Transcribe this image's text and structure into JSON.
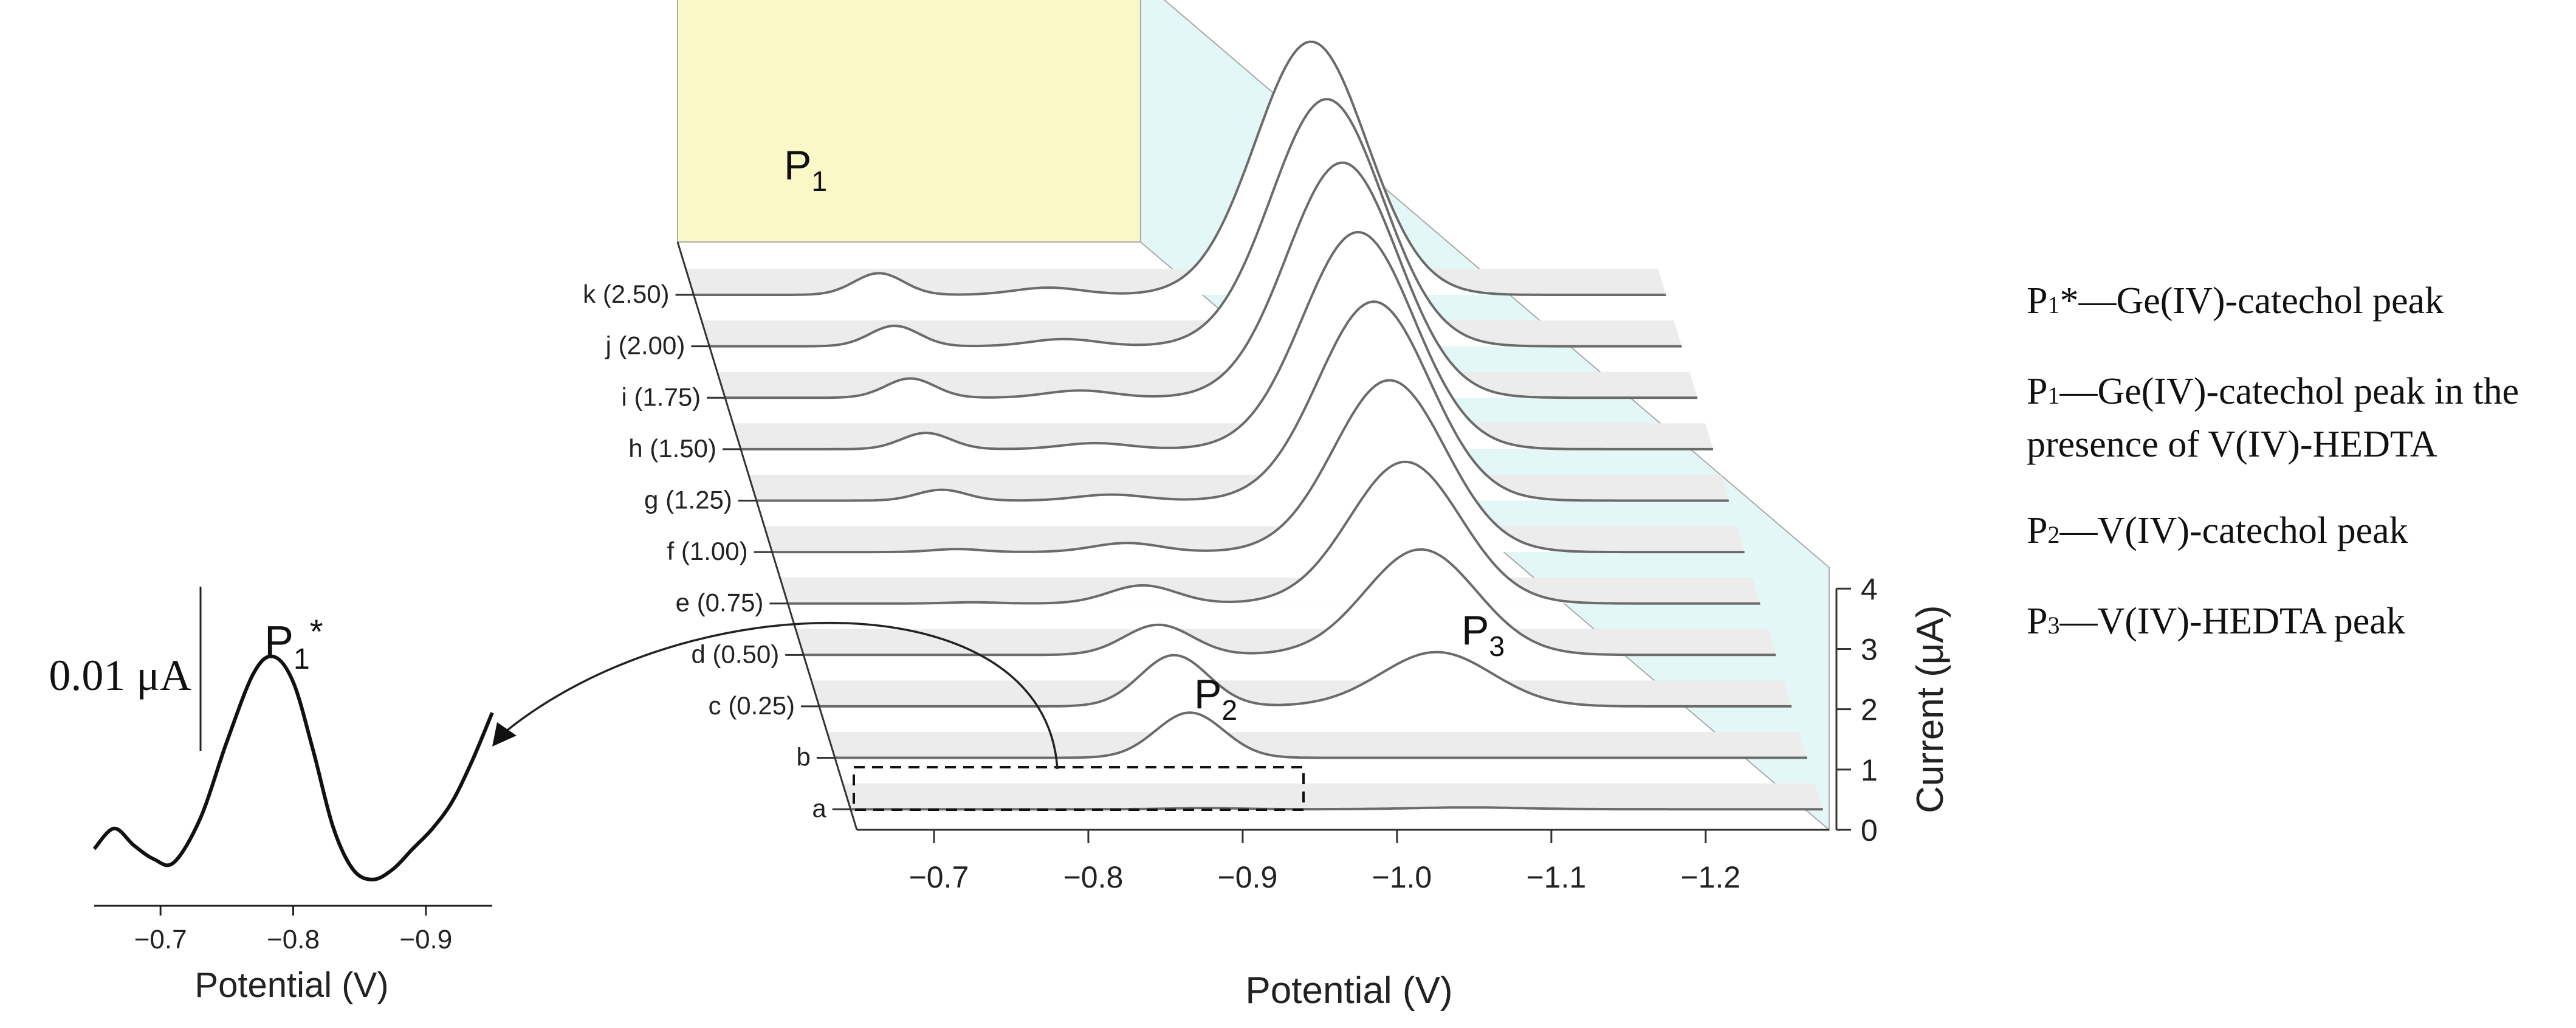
{
  "chart_data": [
    {
      "type": "line",
      "title": "",
      "style": "3d-waterfall",
      "xlabel": "Potential (V)",
      "zlabel": "Current (μA)",
      "xlim": [
        -0.65,
        -1.28
      ],
      "zlim": [
        0,
        4
      ],
      "x_ticks": [
        "−0.7",
        "−0.8",
        "−0.9",
        "−1.0",
        "−1.1",
        "−1.2"
      ],
      "z_ticks": [
        "0",
        "1",
        "2",
        "3",
        "4"
      ],
      "peak_labels": [
        {
          "id": "P1",
          "base": "P",
          "sub": "1",
          "potential": -0.77
        },
        {
          "id": "P2",
          "base": "P",
          "sub": "2",
          "potential": -0.88
        },
        {
          "id": "P3",
          "base": "P",
          "sub": "3",
          "potential": -1.05
        }
      ],
      "series": [
        {
          "name": "a",
          "label": "a",
          "p1": 0.0,
          "p2": 0.02,
          "p3": 0.03
        },
        {
          "name": "b",
          "label": "b",
          "p1": 0.0,
          "p2": 0.75,
          "p3": 0.0
        },
        {
          "name": "c",
          "label": "c (0.25)",
          "p1": 0.0,
          "p2": 0.85,
          "p3": 0.9
        },
        {
          "name": "d",
          "label": "d (0.50)",
          "p1": 0.0,
          "p2": 0.5,
          "p3": 1.75
        },
        {
          "name": "e",
          "label": "e (0.75)",
          "p1": 0.02,
          "p2": 0.3,
          "p3": 2.35
        },
        {
          "name": "f",
          "label": "f (1.00)",
          "p1": 0.05,
          "p2": 0.15,
          "p3": 2.85
        },
        {
          "name": "g",
          "label": "g (1.25)",
          "p1": 0.18,
          "p2": 0.1,
          "p3": 3.3
        },
        {
          "name": "h",
          "label": "h (1.50)",
          "p1": 0.27,
          "p2": 0.1,
          "p3": 3.6
        },
        {
          "name": "i",
          "label": "i (1.75)",
          "p1": 0.32,
          "p2": 0.12,
          "p3": 3.9
        },
        {
          "name": "j",
          "label": "j (2.00)",
          "p1": 0.34,
          "p2": 0.12,
          "p3": 4.1
        },
        {
          "name": "k",
          "label": "k (2.50)",
          "p1": 0.36,
          "p2": 0.12,
          "p3": 4.2
        }
      ],
      "zoom_box_series": "a"
    },
    {
      "type": "line",
      "title": "",
      "xlabel": "Potential (V)",
      "xlim": [
        -0.65,
        -0.95
      ],
      "x_ticks": [
        "−0.7",
        "−0.8",
        "−0.9"
      ],
      "scale_bar": "0.01 μA",
      "peak_label": {
        "base": "P",
        "sub": "1",
        "sup": "*"
      },
      "series": [
        {
          "name": "a (zoom)",
          "x": [
            -0.65,
            -0.665,
            -0.68,
            -0.695,
            -0.71,
            -0.73,
            -0.75,
            -0.77,
            -0.785,
            -0.8,
            -0.815,
            -0.83,
            -0.845,
            -0.86,
            -0.875,
            -0.89,
            -0.905,
            -0.92,
            -0.935,
            -0.95
          ],
          "y": [
            0.0012,
            0.0024,
            0.0014,
            0.0006,
            0.0004,
            0.003,
            0.0075,
            0.0115,
            0.0125,
            0.011,
            0.007,
            0.0025,
            0.0,
            -0.0006,
            0.0,
            0.0012,
            0.0024,
            0.004,
            0.0064,
            0.0092
          ]
        }
      ]
    }
  ],
  "legend": [
    {
      "base": "P",
      "sub": "1",
      "sup": "*",
      "text": "—Ge(IV)-catechol peak"
    },
    {
      "base": "P",
      "sub": "1",
      "sup": "",
      "text": "—Ge(IV)-catechol peak in the presence of V(IV)-HEDTA"
    },
    {
      "base": "P",
      "sub": "2",
      "sup": "",
      "text": "—V(IV)-catechol peak"
    },
    {
      "base": "P",
      "sub": "3",
      "sup": "",
      "text": "—V(IV)-HEDTA peak"
    }
  ]
}
